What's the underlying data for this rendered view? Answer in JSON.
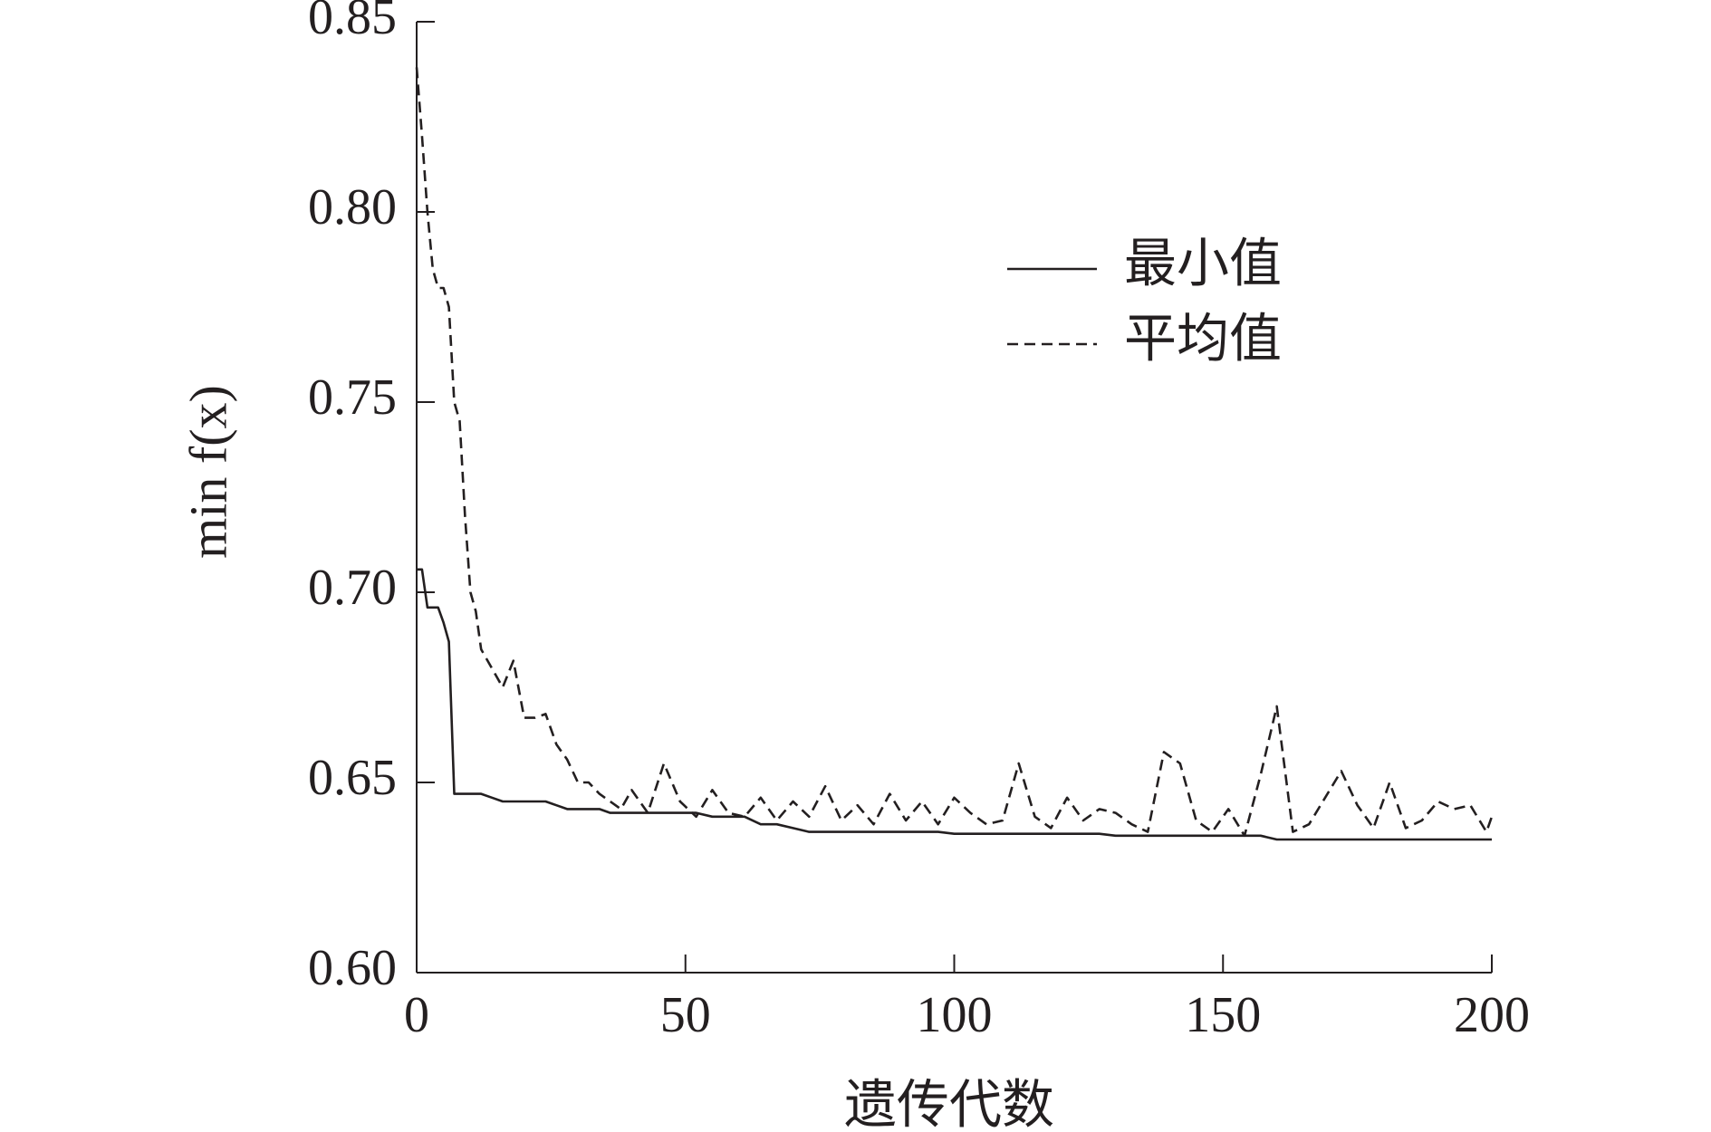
{
  "chart_data": {
    "type": "line",
    "xlabel": "遗传代数",
    "ylabel": "min f(x)",
    "x": [
      0,
      1,
      2,
      3,
      4,
      5,
      6,
      7,
      8,
      9,
      10,
      11,
      12,
      14,
      16,
      18,
      20,
      22,
      24,
      26,
      28,
      30,
      32,
      34,
      36,
      38,
      40,
      43,
      46,
      49,
      52,
      55,
      58,
      61,
      64,
      67,
      70,
      73,
      76,
      79,
      82,
      85,
      88,
      91,
      94,
      97,
      100,
      103,
      106,
      109,
      112,
      115,
      118,
      121,
      124,
      127,
      130,
      133,
      136,
      139,
      142,
      145,
      148,
      151,
      154,
      157,
      160,
      163,
      166,
      169,
      172,
      175,
      178,
      181,
      184,
      187,
      190,
      193,
      196,
      199,
      200
    ],
    "series": [
      {
        "name": "最小值",
        "color": "#231f20",
        "dashed": false,
        "values": [
          0.706,
          0.706,
          0.696,
          0.696,
          0.696,
          0.692,
          0.687,
          0.647,
          0.647,
          0.647,
          0.647,
          0.647,
          0.647,
          0.646,
          0.645,
          0.645,
          0.645,
          0.645,
          0.645,
          0.644,
          0.643,
          0.643,
          0.643,
          0.643,
          0.642,
          0.642,
          0.642,
          0.642,
          0.642,
          0.642,
          0.642,
          0.641,
          0.641,
          0.641,
          0.639,
          0.639,
          0.638,
          0.637,
          0.637,
          0.637,
          0.637,
          0.637,
          0.637,
          0.637,
          0.637,
          0.637,
          0.6365,
          0.6365,
          0.6365,
          0.6365,
          0.6365,
          0.6365,
          0.6365,
          0.6365,
          0.6365,
          0.6365,
          0.636,
          0.636,
          0.636,
          0.636,
          0.636,
          0.636,
          0.636,
          0.636,
          0.636,
          0.636,
          0.635,
          0.635,
          0.635,
          0.635,
          0.635,
          0.635,
          0.635,
          0.635,
          0.635,
          0.635,
          0.635,
          0.635,
          0.635,
          0.635,
          0.635
        ]
      },
      {
        "name": "平均值",
        "color": "#231f20",
        "dashed": true,
        "values": [
          0.838,
          0.82,
          0.8,
          0.785,
          0.78,
          0.78,
          0.775,
          0.75,
          0.745,
          0.72,
          0.7,
          0.695,
          0.685,
          0.68,
          0.675,
          0.682,
          0.667,
          0.667,
          0.668,
          0.66,
          0.656,
          0.65,
          0.65,
          0.647,
          0.645,
          0.643,
          0.648,
          0.642,
          0.655,
          0.645,
          0.641,
          0.648,
          0.642,
          0.641,
          0.646,
          0.64,
          0.645,
          0.641,
          0.649,
          0.64,
          0.644,
          0.639,
          0.647,
          0.64,
          0.645,
          0.639,
          0.646,
          0.642,
          0.639,
          0.64,
          0.655,
          0.641,
          0.638,
          0.646,
          0.64,
          0.643,
          0.642,
          0.639,
          0.637,
          0.658,
          0.655,
          0.64,
          0.637,
          0.643,
          0.636,
          0.652,
          0.67,
          0.637,
          0.639,
          0.646,
          0.653,
          0.644,
          0.638,
          0.65,
          0.638,
          0.64,
          0.645,
          0.643,
          0.644,
          0.637,
          0.641
        ]
      }
    ],
    "xlim": [
      0,
      200
    ],
    "xticks": [
      0,
      50,
      100,
      150,
      200
    ],
    "ylim": [
      0.6,
      0.85
    ],
    "yticks": [
      {
        "value": 0.6,
        "label": "0.60"
      },
      0.65,
      {
        "value": 0.7,
        "label": "0.70"
      },
      0.75,
      {
        "value": 0.8,
        "label": "0.80"
      },
      0.85
    ],
    "legend": "upper right"
  }
}
